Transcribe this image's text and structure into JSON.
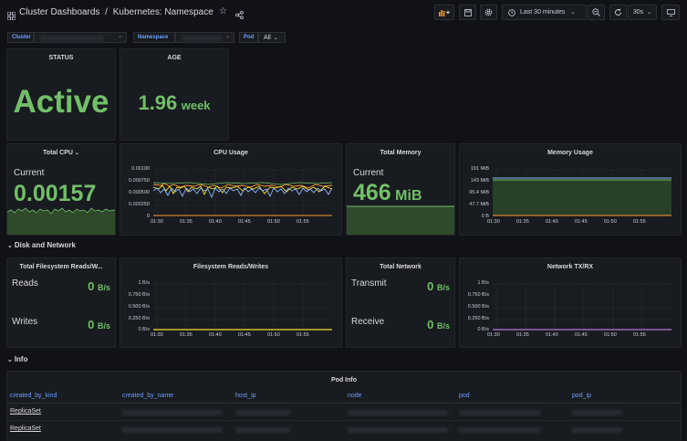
{
  "header": {
    "breadcrumb_parent": "Cluster Dashboards",
    "separator": "/",
    "dashboard_title": "Kubernetes: Namespace",
    "time_range": "Last 30 minutes",
    "refresh_interval": "30s"
  },
  "variables": {
    "cluster_label": "Cluster",
    "namespace_label": "Namespace",
    "pod_label": "Pod",
    "pod_value": "All"
  },
  "status": {
    "title": "STATUS",
    "value": "Active"
  },
  "age": {
    "title": "AGE",
    "value": "1.96",
    "unit": "week"
  },
  "total_cpu": {
    "title": "Total CPU",
    "label": "Current",
    "value": "0.00157"
  },
  "cpu_usage": {
    "title": "CPU Usage",
    "y_ticks": [
      "0.00100",
      "0.000750",
      "0.000500",
      "0.000250",
      "0"
    ],
    "x_ticks": [
      "01:30",
      "01:35",
      "01:40",
      "01:45",
      "01:50",
      "01:55"
    ]
  },
  "total_memory": {
    "title": "Total Memory",
    "label": "Current",
    "value": "466",
    "unit": "MiB"
  },
  "memory_usage": {
    "title": "Memory Usage",
    "y_ticks": [
      "191 MiB",
      "143 MiB",
      "95.4 MiB",
      "47.7 MiB",
      "0 B"
    ],
    "x_ticks": [
      "01:30",
      "01:35",
      "01:40",
      "01:45",
      "01:50",
      "01:55"
    ]
  },
  "disk_section": {
    "title": "Disk and Network"
  },
  "fs_totals": {
    "title": "Total Filesystem Reads/W...",
    "reads_label": "Reads",
    "reads_value": "0",
    "reads_unit": "B/s",
    "writes_label": "Writes",
    "writes_value": "0",
    "writes_unit": "B/s"
  },
  "fs_rw": {
    "title": "Filesystem Reads/Writes",
    "y_ticks": [
      "1 B/s",
      "0.750 B/s",
      "0.500 B/s",
      "0.250 B/s",
      "0 B/s"
    ],
    "x_ticks": [
      "01:30",
      "01:35",
      "01:40",
      "01:45",
      "01:50",
      "01:55"
    ]
  },
  "total_network": {
    "title": "Total Network",
    "transmit_label": "Transmit",
    "transmit_value": "0",
    "transmit_unit": "B/s",
    "receive_label": "Receive",
    "receive_value": "0",
    "receive_unit": "B/s"
  },
  "network_txrx": {
    "title": "Network TX/RX",
    "y_ticks": [
      "1 B/s",
      "0.750 B/s",
      "0.500 B/s",
      "0.250 B/s",
      "0 B/s"
    ],
    "x_ticks": [
      "01:30",
      "01:35",
      "01:40",
      "01:45",
      "01:50",
      "01:55"
    ]
  },
  "info_section": {
    "title": "Info"
  },
  "pod_info": {
    "title": "Pod Info",
    "columns": [
      "created_by_kind",
      "created_by_name",
      "host_ip",
      "node",
      "pod",
      "pod_ip"
    ],
    "rows": [
      {
        "created_by_kind": "ReplicaSet"
      },
      {
        "created_by_kind": "ReplicaSet"
      }
    ]
  },
  "colors": {
    "green": "#73bf69",
    "blue": "#6e9fff",
    "orange": "#ff9830",
    "yellow": "#fade2a",
    "cyan": "#8ab8ff",
    "purple": "#b877d9"
  }
}
